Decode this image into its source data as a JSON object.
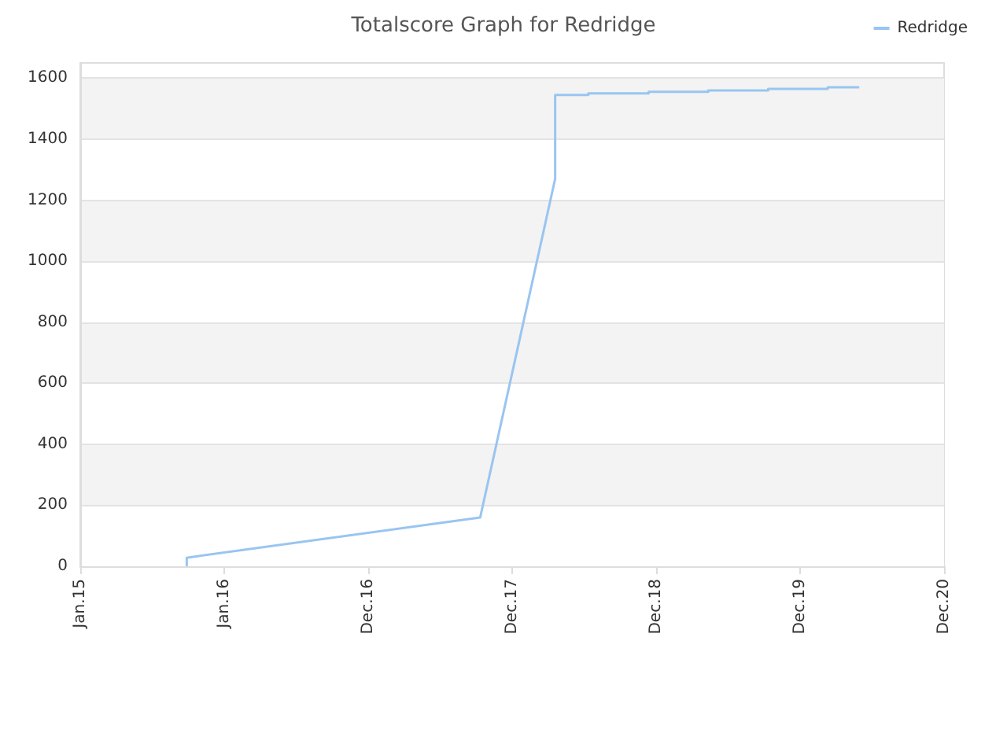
{
  "chart_data": {
    "type": "line",
    "title": "Totalscore Graph for Redridge",
    "x": [
      "2015-09-28",
      "2015-09-28",
      "2017-10-11",
      "2018-04-19",
      "2018-04-19",
      "2018-07-12",
      "2018-07-12",
      "2018-12-12",
      "2018-12-12",
      "2019-05-12",
      "2019-05-12",
      "2019-10-11",
      "2019-10-11",
      "2020-03-10",
      "2020-03-10",
      "2020-05-29"
    ],
    "series": [
      {
        "name": "Redridge",
        "color": "#99c5f0",
        "values": [
          0,
          28,
          160,
          1270,
          1545,
          1545,
          1550,
          1550,
          1555,
          1555,
          1560,
          1560,
          1565,
          1565,
          1570,
          1570
        ]
      }
    ],
    "xlim": [
      "2015-01-01",
      "2020-12-30"
    ],
    "xticks": [
      {
        "value": "2015-01-01",
        "label": "Jan.15"
      },
      {
        "value": "2016-01-01",
        "label": "Jan.16"
      },
      {
        "value": "2016-12-31",
        "label": "Dec.16"
      },
      {
        "value": "2017-12-31",
        "label": "Dec.17"
      },
      {
        "value": "2018-12-31",
        "label": "Dec.18"
      },
      {
        "value": "2019-12-31",
        "label": "Dec.19"
      },
      {
        "value": "2020-12-30",
        "label": "Dec.20"
      }
    ],
    "ylim": [
      0,
      1650
    ],
    "yticks": [
      0,
      200,
      400,
      600,
      800,
      1000,
      1200,
      1400,
      1600
    ],
    "grid": "y",
    "legend": "top right",
    "marker": "none",
    "line_style": "solid"
  }
}
